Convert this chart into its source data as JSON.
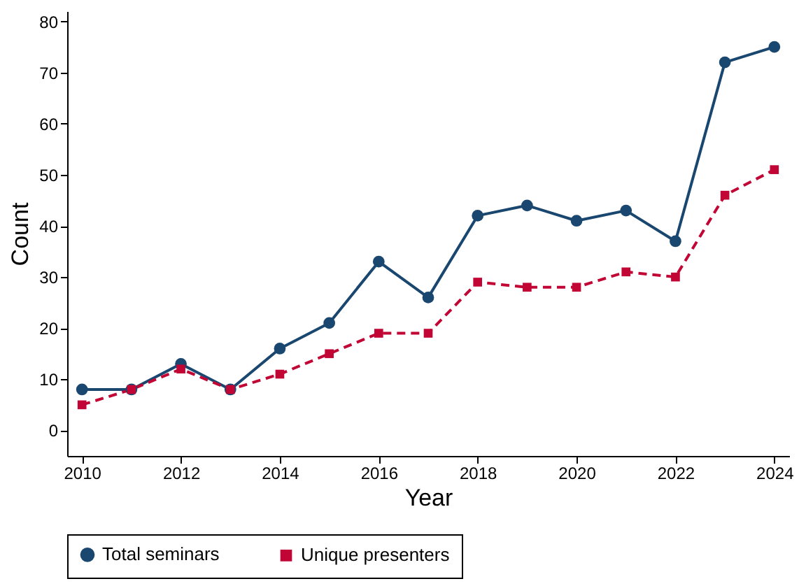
{
  "chart_data": {
    "type": "line",
    "xlabel": "Year",
    "ylabel": "Count",
    "x": [
      2010,
      2011,
      2012,
      2013,
      2014,
      2015,
      2016,
      2017,
      2018,
      2019,
      2020,
      2021,
      2022,
      2023,
      2024
    ],
    "series": [
      {
        "name": "Total seminars",
        "color": "#1a476f",
        "marker": "circle",
        "line_style": "solid",
        "values": [
          8,
          8,
          13,
          8,
          16,
          21,
          33,
          26,
          42,
          44,
          41,
          43,
          37,
          72,
          75
        ]
      },
      {
        "name": "Unique presenters",
        "color": "#c10534",
        "marker": "square",
        "line_style": "dashed",
        "values": [
          5,
          8,
          12,
          8,
          11,
          15,
          19,
          19,
          29,
          28,
          28,
          31,
          30,
          46,
          51
        ]
      }
    ],
    "xlim": [
      2009.7,
      2024.3
    ],
    "xticks": [
      2010,
      2012,
      2014,
      2016,
      2018,
      2020,
      2022,
      2024
    ],
    "ylim": [
      -5,
      82
    ],
    "yticks": [
      0,
      10,
      20,
      30,
      40,
      50,
      60,
      70,
      80
    ],
    "grid": false,
    "legend": "bottom"
  }
}
